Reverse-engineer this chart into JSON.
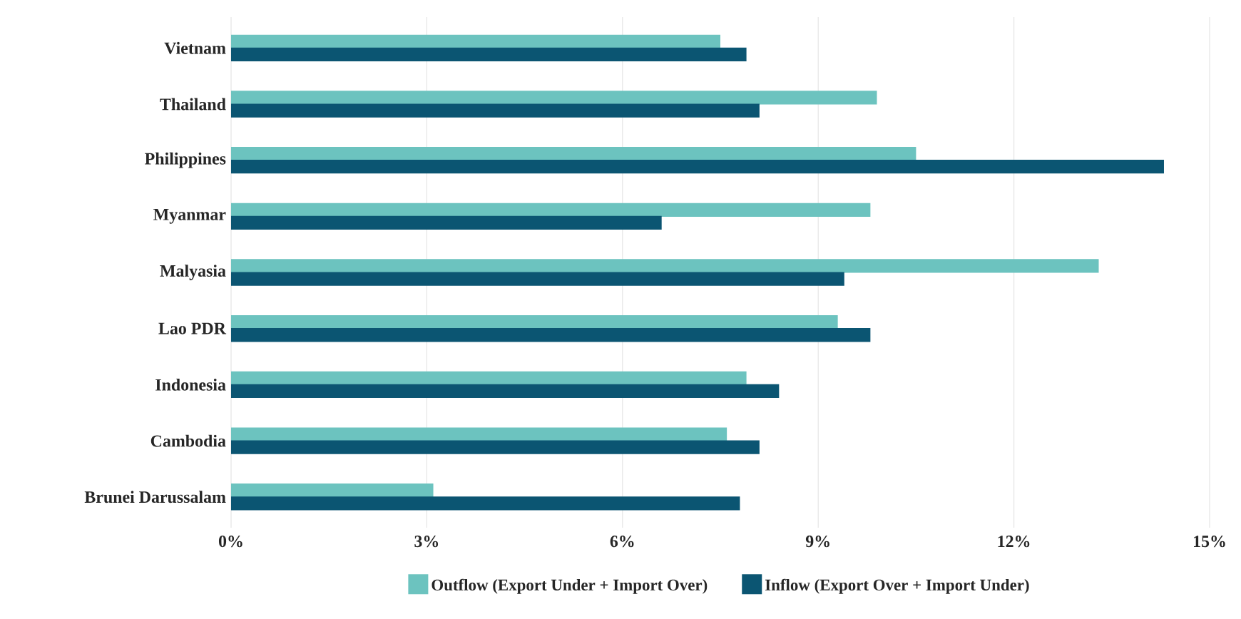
{
  "chart_data": {
    "type": "bar",
    "orientation": "horizontal",
    "categories": [
      "Vietnam",
      "Thailand",
      "Philippines",
      "Myanmar",
      "Malyasia",
      "Lao PDR",
      "Indonesia",
      "Cambodia",
      "Brunei Darussalam"
    ],
    "series": [
      {
        "name": "Outflow (Export Under + Import Over)",
        "color": "#6cc3bf",
        "values": [
          7.5,
          9.9,
          10.5,
          9.8,
          13.3,
          9.3,
          7.9,
          7.6,
          3.1
        ]
      },
      {
        "name": "Inflow (Export Over + Import Under)",
        "color": "#0b5572",
        "values": [
          7.9,
          8.1,
          14.3,
          6.6,
          9.4,
          9.8,
          8.4,
          8.1,
          7.8
        ]
      }
    ],
    "xlim": [
      0,
      15
    ],
    "xticks": [
      {
        "value": 0,
        "label": "0%"
      },
      {
        "value": 3,
        "label": "3%"
      },
      {
        "value": 6,
        "label": "6%"
      },
      {
        "value": 9,
        "label": "9%"
      },
      {
        "value": 12,
        "label": "12%"
      },
      {
        "value": 15,
        "label": "15%"
      }
    ],
    "grid": "x",
    "legend": "bottom"
  }
}
